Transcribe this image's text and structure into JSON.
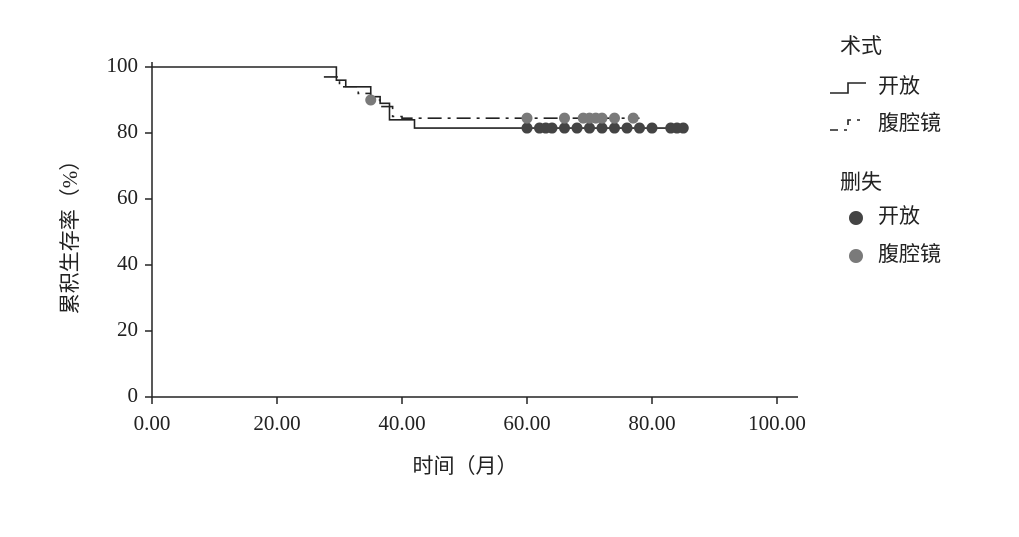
{
  "chart_data": {
    "type": "km",
    "xlabel": "时间（月）",
    "ylabel": "累积生存率（%）",
    "xlim": [
      0,
      100
    ],
    "ylim": [
      0,
      100
    ],
    "xticks": [
      {
        "value": 0,
        "label": "0.00"
      },
      {
        "value": 20,
        "label": "20.00"
      },
      {
        "value": 40,
        "label": "40.00"
      },
      {
        "value": 60,
        "label": "60.00"
      },
      {
        "value": 80,
        "label": "80.00"
      },
      {
        "value": 100,
        "label": "100.00"
      }
    ],
    "yticks": [
      0,
      20,
      40,
      60,
      80,
      100
    ],
    "legend_title": "术式",
    "censored_legend_title": "删失",
    "series": [
      {
        "name": "开放",
        "color": "#222222",
        "dash": false,
        "x": [
          0,
          29.5,
          31,
          35,
          36.5,
          38,
          42,
          85
        ],
        "values": [
          100,
          96,
          94,
          91,
          89,
          84,
          81.5,
          81.5
        ]
      },
      {
        "name": "腹腔镜",
        "color": "#222222",
        "dash": true,
        "x": [
          27.5,
          30,
          33,
          35,
          36.5,
          38.5,
          40,
          78
        ],
        "values": [
          97,
          94,
          92,
          90,
          88,
          85,
          84.5,
          84.5
        ]
      }
    ],
    "censored": [
      {
        "name": "开放",
        "color": "#444444",
        "x": [
          60,
          62,
          63,
          64,
          66,
          68,
          70,
          72,
          74,
          76,
          78,
          80,
          83,
          84,
          85
        ],
        "values": [
          81.5,
          81.5,
          81.5,
          81.5,
          81.5,
          81.5,
          81.5,
          81.5,
          81.5,
          81.5,
          81.5,
          81.5,
          81.5,
          81.5,
          81.5
        ]
      },
      {
        "name": "腹腔镜",
        "color": "#7a7a7a",
        "x": [
          35,
          60,
          66,
          69,
          70,
          71,
          72,
          74,
          77
        ],
        "values": [
          90,
          84.5,
          84.5,
          84.5,
          84.5,
          84.5,
          84.5,
          84.5,
          84.5
        ]
      }
    ]
  }
}
